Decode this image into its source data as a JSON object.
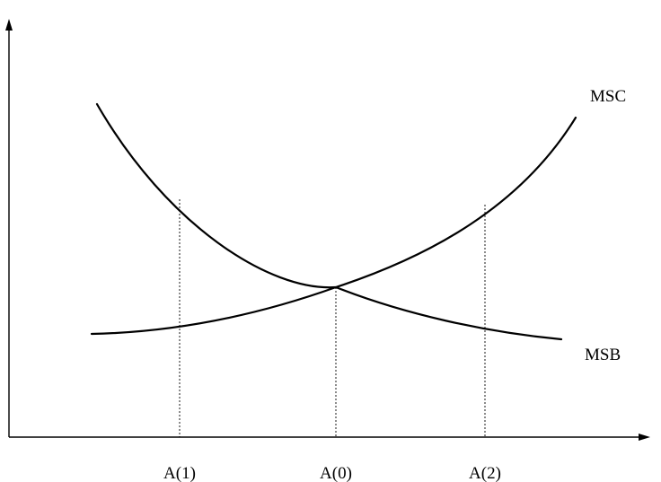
{
  "curves": {
    "msc": {
      "label": "MSC"
    },
    "msb": {
      "label": "MSB"
    }
  },
  "x_axis": {
    "ticks": [
      "A(1)",
      "A(0)",
      "A(2)"
    ]
  },
  "colors": {
    "line": "#000000",
    "background": "#ffffff"
  }
}
